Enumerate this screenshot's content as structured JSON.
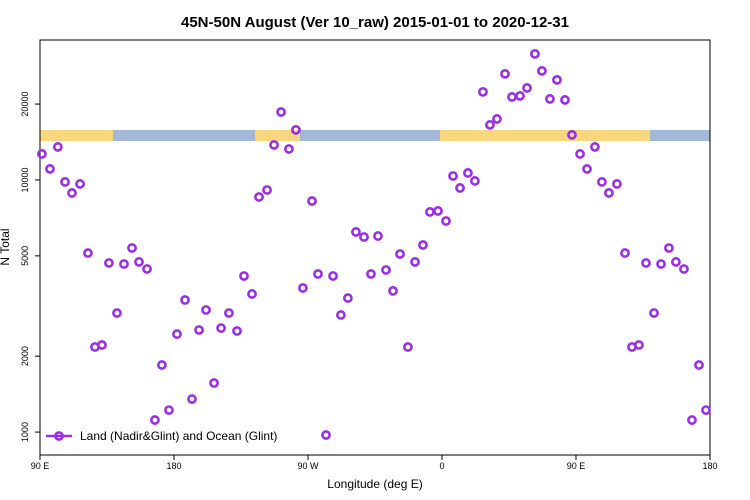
{
  "chart_data": {
    "type": "scatter",
    "title": "45N-50N August (Ver 10_raw)   2015-01-01 to 2020-12-31",
    "x_label": "Longitude (deg E)",
    "y_label": "N Total",
    "x": [
      91.3,
      96.7,
      102,
      106.8,
      111.5,
      116.9,
      122.2,
      126.9,
      131.6,
      136.3,
      141.7,
      146.4,
      151.8,
      156.5,
      161.9,
      167.2,
      171.9,
      176.6,
      182,
      187.4,
      192.1,
      196.8,
      201.5,
      206.9,
      211.6,
      216.9,
      222.3,
      227,
      232.4,
      237.1,
      242.5,
      247.2,
      251.9,
      257.2,
      261.9,
      266.6,
      272.7,
      276.7,
      282.1,
      286.8,
      292.1,
      296.8,
      302.2,
      307.6,
      312.3,
      317,
      322.4,
      327.1,
      331.8,
      337.1,
      341.9,
      347.2,
      351.9,
      357.3,
      362.7,
      367.4,
      372.1,
      377.4,
      382.1,
      387.5,
      392.2,
      396.9,
      402.3,
      407,
      412.4,
      417.1,
      422.4,
      427.1,
      432.5,
      437.2,
      442.6,
      447.3,
      452.7,
      457.4,
      462.7,
      467.4,
      472.1,
      477.5,
      482.9,
      487.6,
      492.3,
      497,
      502.4,
      507.1,
      512.4,
      517.1,
      522.5,
      527.9,
      532.6,
      537.3
    ],
    "series": [
      {
        "name": "Land (Nadir&Glint) and Ocean (Glint)",
        "color": "#9b2fe6",
        "values": [
          12680,
          11060,
          13520,
          9820,
          8880,
          9640,
          5130,
          2175,
          2215,
          4685,
          2967,
          4640,
          5370,
          4730,
          4435,
          1116,
          1845,
          1222,
          2447,
          3340,
          1352,
          2540,
          3050,
          1565,
          2585,
          2967,
          2517,
          4160,
          3530,
          8560,
          9125,
          13770,
          18600,
          13270,
          15790,
          3727,
          8250,
          4235,
          973,
          4160,
          2912,
          3400,
          6220,
          5940,
          4235,
          5990,
          4395,
          3630,
          5085,
          2175,
          4730,
          5520,
          7465,
          7535,
          6875,
          10370,
          9295,
          10660,
          9910,
          22350,
          16530,
          17460,
          26350,
          21340,
          21540,
          23170,
          31620,
          27080,
          20960,
          24940,
          20770,
          15090,
          12680,
          11060,
          13520,
          9820,
          8880,
          9640,
          5130,
          2175,
          2215,
          4685,
          2967,
          4640,
          5370,
          4730,
          4435,
          1116,
          1845,
          1222
        ]
      }
    ],
    "xlim": [
      90,
      540
    ],
    "xticks": [
      {
        "value": 90,
        "label": "90 E"
      },
      180,
      {
        "value": 270,
        "label": "90 W"
      },
      {
        "value": 360,
        "label": "0"
      },
      {
        "value": 450,
        "label": "90 E"
      },
      {
        "value": 540,
        "label": "180"
      }
    ],
    "ylim": [
      811,
      35900
    ],
    "yticks": [
      1000,
      2000,
      5000,
      10000,
      20000
    ],
    "y_scale": "log",
    "legend": "lower left"
  }
}
